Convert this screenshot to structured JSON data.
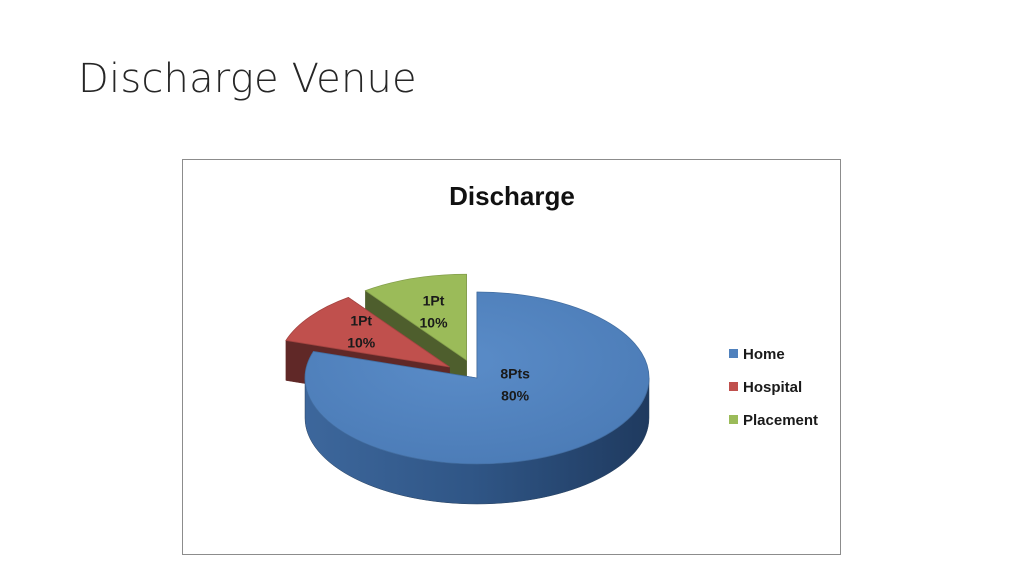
{
  "slide": {
    "title": "Discharge Venue"
  },
  "chart_data": {
    "type": "pie",
    "title": "Discharge",
    "categories": [
      "Home",
      "Hospital",
      "Placement"
    ],
    "values": [
      8,
      1,
      1
    ],
    "percentages": [
      80,
      10,
      10
    ],
    "data_labels": [
      [
        "8Pts",
        "80%"
      ],
      [
        "1Pt",
        "10%"
      ],
      [
        "1Pt",
        "10%"
      ]
    ],
    "colors": [
      "#4f81bd",
      "#c0504d",
      "#9bbb59"
    ],
    "style": "3d-exploded",
    "legend_position": "right"
  }
}
